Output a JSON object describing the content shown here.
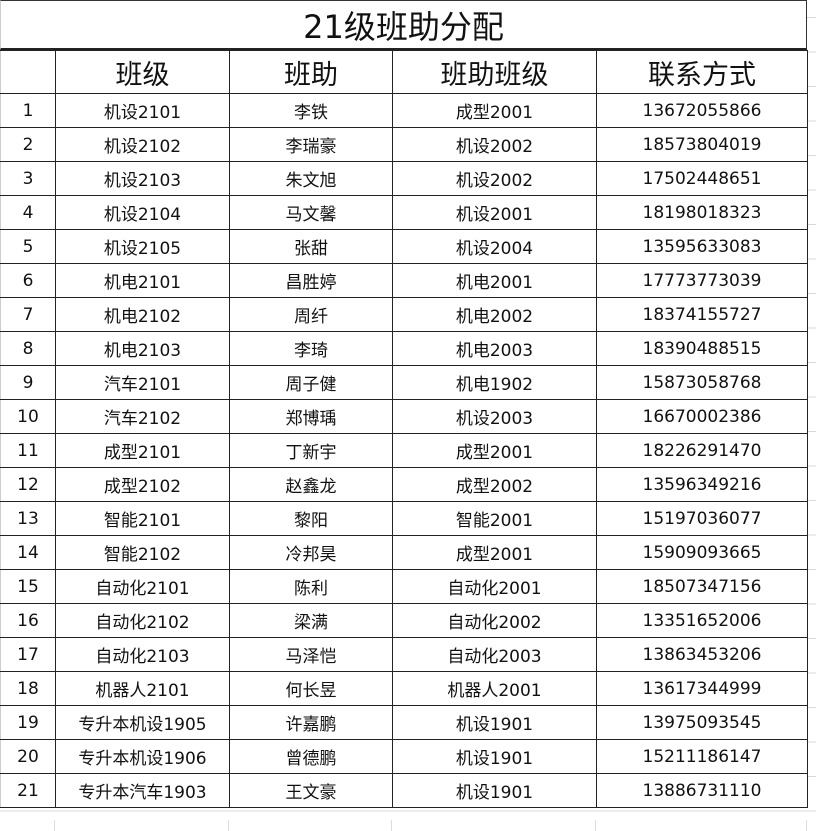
{
  "title": "21级班助分配",
  "columns": [
    "",
    "班级",
    "班助",
    "班助班级",
    "联系方式"
  ],
  "rows": [
    [
      "1",
      "机设2101",
      "李铁",
      "成型2001",
      "13672055866"
    ],
    [
      "2",
      "机设2102",
      "李瑞豪",
      "机设2002",
      "18573804019"
    ],
    [
      "3",
      "机设2103",
      "朱文旭",
      "机设2002",
      "17502448651"
    ],
    [
      "4",
      "机设2104",
      "马文馨",
      "机设2001",
      "18198018323"
    ],
    [
      "5",
      "机设2105",
      "张甜",
      "机设2004",
      "13595633083"
    ],
    [
      "6",
      "机电2101",
      "昌胜婷",
      "机电2001",
      "17773773039"
    ],
    [
      "7",
      "机电2102",
      "周纤",
      "机电2002",
      "18374155727"
    ],
    [
      "8",
      "机电2103",
      "李琦",
      "机电2003",
      "18390488515"
    ],
    [
      "9",
      "汽车2101",
      "周子健",
      "机电1902",
      "15873058768"
    ],
    [
      "10",
      "汽车2102",
      "郑博瑀",
      "机设2003",
      "16670002386"
    ],
    [
      "11",
      "成型2101",
      "丁新宇",
      "成型2001",
      "18226291470"
    ],
    [
      "12",
      "成型2102",
      "赵鑫龙",
      "成型2002",
      "13596349216"
    ],
    [
      "13",
      "智能2101",
      "黎阳",
      "智能2001",
      "15197036077"
    ],
    [
      "14",
      "智能2102",
      "冷邦昊",
      "成型2001",
      "15909093665"
    ],
    [
      "15",
      "自动化2101",
      "陈利",
      "自动化2001",
      "18507347156"
    ],
    [
      "16",
      "自动化2102",
      "梁满",
      "自动化2002",
      "13351652006"
    ],
    [
      "17",
      "自动化2103",
      "马泽恺",
      "自动化2003",
      "13863453206"
    ],
    [
      "18",
      "机器人2101",
      "何长昱",
      "机器人2001",
      "13617344999"
    ],
    [
      "19",
      "专升本机设1905",
      "许嘉鹏",
      "机设1901",
      "13975093545"
    ],
    [
      "20",
      "专升本机设1906",
      "曾德鹏",
      "机设1901",
      "15211186147"
    ],
    [
      "21",
      "专升本汽车1903",
      "王文豪",
      "机设1901",
      "13886731110"
    ]
  ]
}
